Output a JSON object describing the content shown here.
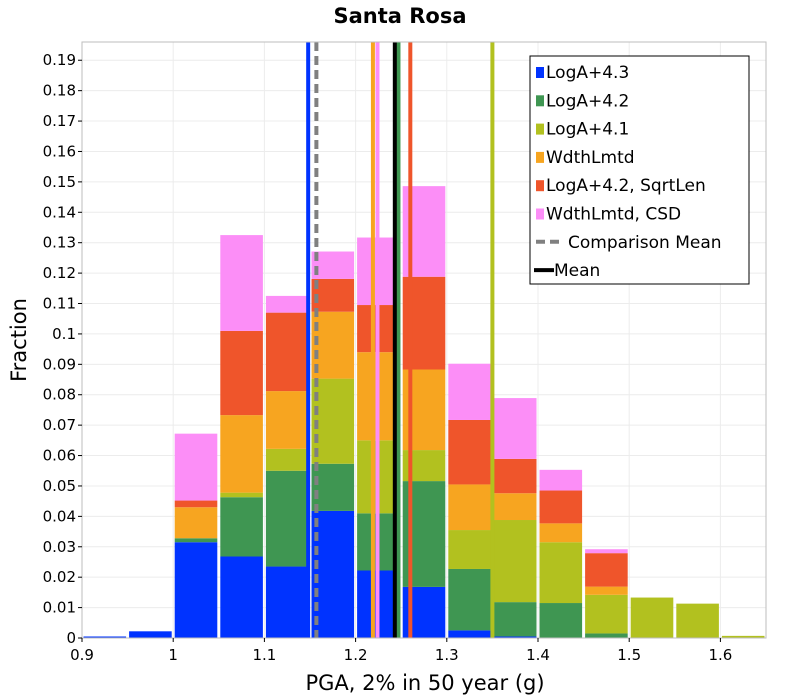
{
  "chart_data": {
    "type": "bar",
    "stacked": true,
    "title": "Santa Rosa",
    "xlabel": "PGA, 2% in 50 year (g)",
    "ylabel": "Fraction",
    "xlim": [
      0.9,
      1.65
    ],
    "ylim": [
      0,
      0.196
    ],
    "xticks": [
      0.9,
      1,
      1.1,
      1.2,
      1.3,
      1.4,
      1.5,
      1.6
    ],
    "xtick_labels": [
      "0.9",
      "1",
      "1.1",
      "1.2",
      "1.3",
      "1.4",
      "1.5",
      "1.6"
    ],
    "yticks": [
      0,
      0.01,
      0.02,
      0.03,
      0.04,
      0.05,
      0.06,
      0.07,
      0.08,
      0.09,
      0.1,
      0.11,
      0.12,
      0.13,
      0.14,
      0.15,
      0.16,
      0.17,
      0.18,
      0.19
    ],
    "ytick_labels": [
      "0",
      "0.01",
      "0.02",
      "0.03",
      "0.04",
      "0.05",
      "0.06",
      "0.07",
      "0.08",
      "0.09",
      "0.1",
      "0.11",
      "0.12",
      "0.13",
      "0.14",
      "0.15",
      "0.16",
      "0.17",
      "0.18",
      "0.19"
    ],
    "grid": true,
    "legend_position": "top-right",
    "bin_width": 0.05,
    "bins": [
      0.925,
      0.975,
      1.025,
      1.075,
      1.125,
      1.175,
      1.225,
      1.275,
      1.325,
      1.375,
      1.425,
      1.475,
      1.525,
      1.575,
      1.625
    ],
    "series": [
      {
        "name": "LogA+4.3",
        "color": "#0033ff",
        "values": [
          0.0005,
          0.0022,
          0.0315,
          0.0268,
          0.0235,
          0.0418,
          0.0222,
          0.0168,
          0.0025,
          0.0005,
          0,
          0,
          0,
          0,
          0
        ]
      },
      {
        "name": "LogA+4.2",
        "color": "#3f9652",
        "values": [
          0,
          0,
          0.0013,
          0.0195,
          0.0315,
          0.0155,
          0.0188,
          0.0348,
          0.0202,
          0.0113,
          0.0115,
          0.0015,
          0,
          0,
          0
        ]
      },
      {
        "name": "LogA+4.1",
        "color": "#b2c11f",
        "values": [
          0,
          0,
          0,
          0.0015,
          0.0072,
          0.028,
          0.024,
          0.0102,
          0.0128,
          0.027,
          0.02,
          0.0127,
          0.0133,
          0.0113,
          0.0007
        ]
      },
      {
        "name": "WdthLmtd",
        "color": "#f7a520",
        "values": [
          0,
          0,
          0.0102,
          0.0255,
          0.019,
          0.022,
          0.029,
          0.0265,
          0.015,
          0.0088,
          0.0062,
          0.0027,
          0,
          0,
          0
        ]
      },
      {
        "name": "LogA+4.2, SqrtLen",
        "color": "#ef552b",
        "values": [
          0,
          0,
          0.0022,
          0.0277,
          0.0258,
          0.0108,
          0.0155,
          0.0305,
          0.0212,
          0.0113,
          0.0108,
          0.011,
          0,
          0,
          0
        ]
      },
      {
        "name": "WdthLmtd, CSD",
        "color": "#fc8ef7",
        "values": [
          0,
          0,
          0.022,
          0.0315,
          0.0055,
          0.009,
          0.0222,
          0.0298,
          0.0185,
          0.02,
          0.0068,
          0.0013,
          0,
          0,
          0
        ]
      }
    ],
    "vertical_lines": [
      {
        "series": "LogA+4.3",
        "x": 1.148,
        "color": "#0033ff",
        "style": "solid"
      },
      {
        "series": "LogA+4.2",
        "x": 1.247,
        "color": "#3f9652",
        "style": "solid"
      },
      {
        "series": "LogA+4.1",
        "x": 1.35,
        "color": "#b2c11f",
        "style": "solid"
      },
      {
        "series": "WdthLmtd",
        "x": 1.219,
        "color": "#f7a520",
        "style": "solid"
      },
      {
        "series": "LogA+4.2, SqrtLen",
        "x": 1.26,
        "color": "#ef552b",
        "style": "solid"
      },
      {
        "series": "WdthLmtd, CSD",
        "x": 1.224,
        "color": "#fc8ef7",
        "style": "solid"
      },
      {
        "series": "Comparison Mean",
        "x": 1.157,
        "color": "#808080",
        "style": "dashed"
      },
      {
        "series": "Mean",
        "x": 1.243,
        "color": "#000000",
        "style": "solid"
      }
    ],
    "legend": [
      {
        "label": "LogA+4.3",
        "color": "#0033ff",
        "kind": "box"
      },
      {
        "label": "LogA+4.2",
        "color": "#3f9652",
        "kind": "box"
      },
      {
        "label": "LogA+4.1",
        "color": "#b2c11f",
        "kind": "box"
      },
      {
        "label": "WdthLmtd",
        "color": "#f7a520",
        "kind": "box"
      },
      {
        "label": "LogA+4.2, SqrtLen",
        "color": "#ef552b",
        "kind": "box"
      },
      {
        "label": "WdthLmtd, CSD",
        "color": "#fc8ef7",
        "kind": "box"
      },
      {
        "label": "Comparison Mean",
        "color": "#808080",
        "kind": "dash"
      },
      {
        "label": "Mean",
        "color": "#000000",
        "kind": "line"
      }
    ]
  }
}
